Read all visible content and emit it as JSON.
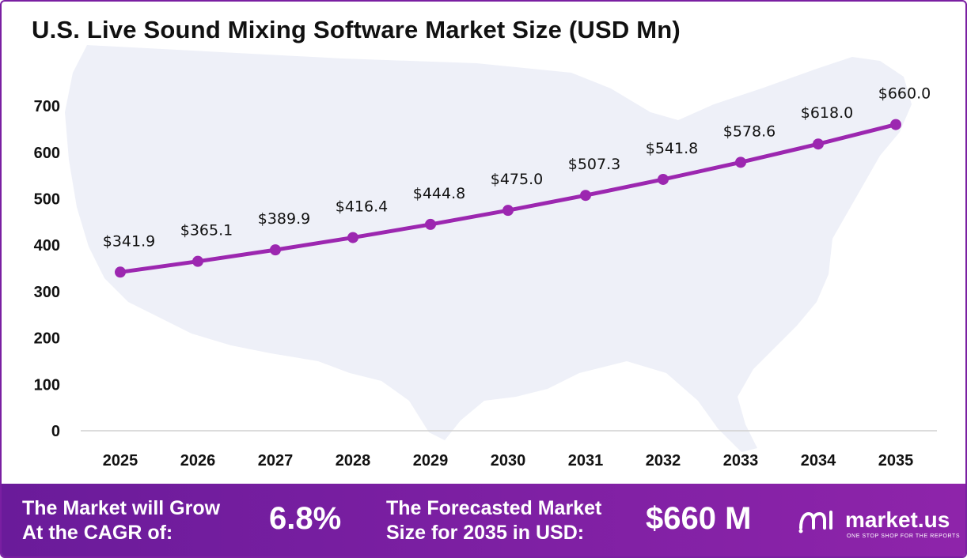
{
  "colors": {
    "line": "#9c27b0",
    "marker": "#9c27b0",
    "footer": "#7b1fa2",
    "map": "#eef0f8"
  },
  "chart_data": {
    "type": "line",
    "title": "U.S. Live Sound Mixing Software Market Size (USD Mn)",
    "categories": [
      "2025",
      "2026",
      "2027",
      "2028",
      "2029",
      "2030",
      "2031",
      "2032",
      "2033",
      "2034",
      "2035"
    ],
    "values": [
      341.9,
      365.1,
      389.9,
      416.4,
      444.8,
      475.0,
      507.3,
      541.8,
      578.6,
      618.0,
      660.0
    ],
    "data_labels": [
      "$341.9",
      "$365.1",
      "$389.9",
      "$416.4",
      "$444.8",
      "$475.0",
      "$507.3",
      "$541.8",
      "$578.6",
      "$618.0",
      "$660.0"
    ],
    "yticks": [
      "0",
      "100",
      "200",
      "300",
      "400",
      "500",
      "600",
      "700"
    ],
    "ylim": [
      0,
      700
    ],
    "grid": false,
    "background": "us-map-silhouette"
  },
  "footer": {
    "cagr_label_line1": "The Market will Grow",
    "cagr_label_line2": "At the CAGR of:",
    "cagr_value": "6.8%",
    "forecast_label_line1": "The Forecasted Market",
    "forecast_label_line2": "Size for 2035 in USD:",
    "forecast_value": "$660 M",
    "brand_name": "market.us",
    "brand_tagline": "ONE STOP SHOP FOR THE REPORTS",
    "brand_icon": "market-us-logo-icon"
  }
}
